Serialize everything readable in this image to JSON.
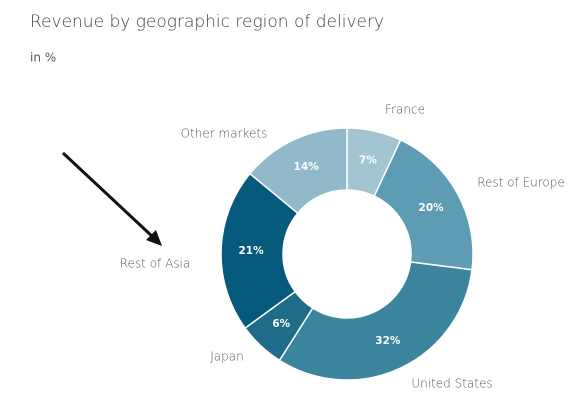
{
  "chart_data": {
    "type": "donut",
    "title": "Revenue by geographic region of delivery",
    "subtitle": "in %",
    "categories": [
      "France",
      "Rest of Europe",
      "United States",
      "Japan",
      "Rest of Asia",
      "Other markets"
    ],
    "values": [
      7,
      20,
      32,
      6,
      21,
      14
    ],
    "value_labels": [
      "7%",
      "20%",
      "32%",
      "6%",
      "21%",
      "14%"
    ],
    "colors": [
      "#a3c5d2",
      "#5d9cb2",
      "#3b849d",
      "#1f6c89",
      "#05597b",
      "#91b9c9"
    ]
  }
}
